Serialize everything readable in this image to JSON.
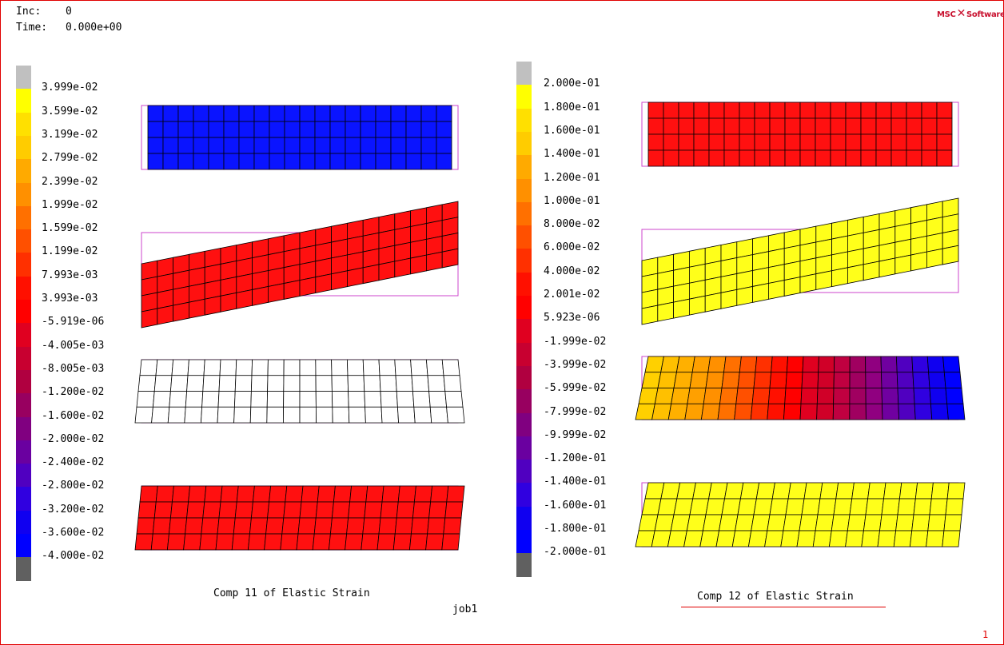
{
  "header": {
    "inc_label": "Inc:",
    "inc_value": "0",
    "time_label": "Time:",
    "time_value": "0.000e+00"
  },
  "logo": {
    "text_left": "MSC",
    "text_right": "Software"
  },
  "legend1": {
    "labels": [
      "3.999e-02",
      "3.599e-02",
      "3.199e-02",
      "2.799e-02",
      "2.399e-02",
      "1.999e-02",
      "1.599e-02",
      "1.199e-02",
      "7.993e-03",
      "3.993e-03",
      "-5.919e-06",
      "-4.005e-03",
      "-8.005e-03",
      "-1.200e-02",
      "-1.600e-02",
      "-2.000e-02",
      "-2.400e-02",
      "-2.800e-02",
      "-3.200e-02",
      "-3.600e-02",
      "-4.000e-02"
    ],
    "colors": [
      "#c0c0c0",
      "#ffff00",
      "#ffe000",
      "#ffcc00",
      "#ffaa00",
      "#ff9000",
      "#ff7000",
      "#ff5000",
      "#ff3000",
      "#ff1000",
      "#ff0000",
      "#e00020",
      "#c80030",
      "#b00040",
      "#980060",
      "#800080",
      "#6a00a0",
      "#5000c0",
      "#3000e0",
      "#1000f0",
      "#0000ff",
      "#606060"
    ],
    "caption": "Comp 11 of Elastic Strain"
  },
  "legend2": {
    "labels": [
      "2.000e-01",
      "1.800e-01",
      "1.600e-01",
      "1.400e-01",
      "1.200e-01",
      "1.000e-01",
      "8.000e-02",
      "6.000e-02",
      "4.000e-02",
      "2.001e-02",
      "5.923e-06",
      "-1.999e-02",
      "-3.999e-02",
      "-5.999e-02",
      "-7.999e-02",
      "-9.999e-02",
      "-1.200e-01",
      "-1.400e-01",
      "-1.600e-01",
      "-1.800e-01",
      "-2.000e-01"
    ],
    "colors": [
      "#c0c0c0",
      "#ffff00",
      "#ffe000",
      "#ffcc00",
      "#ffaa00",
      "#ff9000",
      "#ff7000",
      "#ff5000",
      "#ff3000",
      "#ff1000",
      "#ff0000",
      "#e00020",
      "#c80030",
      "#b00040",
      "#980060",
      "#800080",
      "#6a00a0",
      "#5000c0",
      "#3000e0",
      "#1000f0",
      "#0000ff",
      "#606060"
    ],
    "caption": "Comp 12 of Elastic Strain"
  },
  "job_label": "job1",
  "page_number": "1"
}
